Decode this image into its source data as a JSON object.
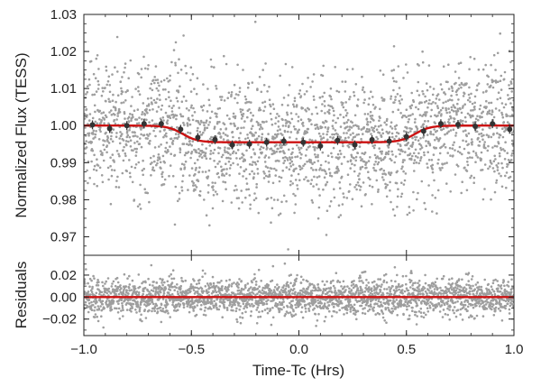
{
  "chart_data": [
    {
      "type": "scatter",
      "panel": "top",
      "ylabel": "Normalized Flux (TESS)",
      "xlim": [
        -1.0,
        1.0
      ],
      "ylim": [
        0.965,
        1.03
      ],
      "yticks": [
        0.97,
        0.98,
        0.99,
        1.0,
        1.01,
        1.02,
        1.03
      ],
      "ytick_labels": [
        "0.97",
        "0.98",
        "0.99",
        "1.00",
        "1.01",
        "1.02",
        "1.03"
      ],
      "grid": false,
      "series": [
        {
          "kind": "raw_scatter",
          "color": "#9e9e9e",
          "approx_count": 2400,
          "scatter_std": 0.0085,
          "follows": "model"
        },
        {
          "kind": "binned_points",
          "color": "#333333",
          "x": [
            -0.96,
            -0.88,
            -0.8,
            -0.72,
            -0.64,
            -0.55,
            -0.47,
            -0.39,
            -0.31,
            -0.23,
            -0.15,
            -0.07,
            0.02,
            0.1,
            0.18,
            0.26,
            0.34,
            0.42,
            0.5,
            0.58,
            0.66,
            0.74,
            0.82,
            0.9,
            0.98
          ],
          "y": [
            1.0002,
            0.9992,
            1.0,
            1.0005,
            1.0005,
            0.999,
            0.9968,
            0.9962,
            0.9948,
            0.995,
            0.9955,
            0.9958,
            0.9955,
            0.9945,
            0.996,
            0.9948,
            0.9962,
            0.9958,
            0.997,
            0.9985,
            1.0005,
            1.0003,
            0.9998,
            1.0005,
            0.999
          ],
          "yerr": 0.0012
        },
        {
          "kind": "model_line",
          "color": "#cc1111",
          "baseline": 1.0,
          "depth": 0.0045,
          "ingress_center": -0.54,
          "egress_center": 0.54,
          "transition_width": 0.035
        }
      ]
    },
    {
      "type": "scatter",
      "panel": "bottom",
      "xlabel": "Time-Tc (Hrs)",
      "ylabel": "Residuals",
      "xlim": [
        -1.0,
        1.0
      ],
      "ylim": [
        -0.035,
        0.038
      ],
      "xticks": [
        -1.0,
        -0.5,
        0.0,
        0.5,
        1.0
      ],
      "xtick_labels": [
        "−1.0",
        "−0.5",
        "0.0",
        "0.5",
        "1.0"
      ],
      "yticks": [
        -0.02,
        0.0,
        0.02
      ],
      "ytick_labels": [
        "−0.02",
        "0.00",
        "0.02"
      ],
      "grid": false,
      "series": [
        {
          "kind": "raw_scatter",
          "color": "#9e9e9e",
          "approx_count": 2400,
          "scatter_std": 0.0085
        },
        {
          "kind": "zero_line",
          "color": "#cc1111",
          "y": 0.0
        }
      ]
    }
  ]
}
